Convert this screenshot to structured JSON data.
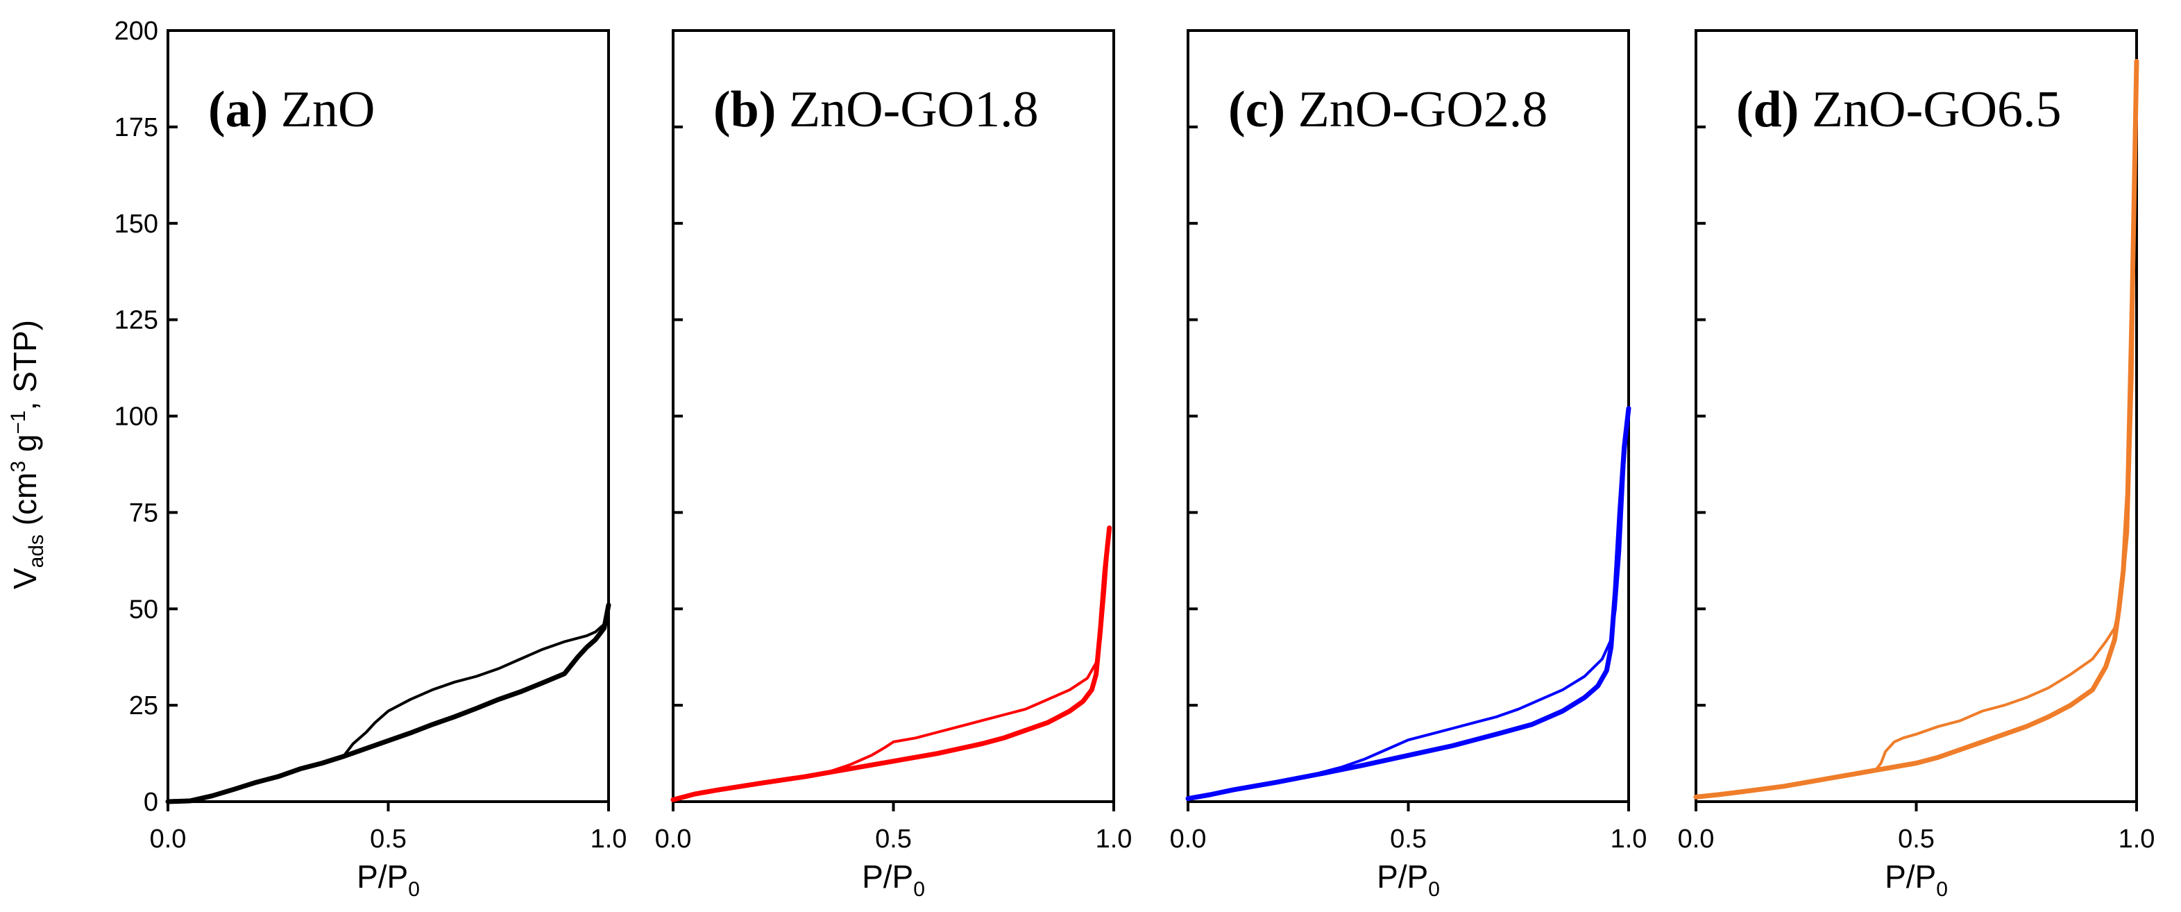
{
  "chart_data": {
    "type": "line",
    "title": "",
    "y_axis": {
      "label_main": "V",
      "label_sub": "ads",
      "label_rest": " (cm",
      "label_sup3": "3",
      "label_g": " g",
      "label_supm1": "−1",
      "label_end": ", STP)",
      "ylim": [
        0,
        200
      ],
      "ticks": [
        0,
        25,
        50,
        75,
        100,
        125,
        150,
        175,
        200
      ],
      "tick_labels": [
        "0",
        "25",
        "50",
        "75",
        "100",
        "125",
        "150",
        "175",
        "200"
      ]
    },
    "x_axis": {
      "label_main": "P/P",
      "label_sub": "0",
      "xlim": [
        0,
        1
      ],
      "ticks": [
        0,
        0.5,
        1.0
      ],
      "tick_labels": [
        "0.0",
        "0.5",
        "1.0"
      ]
    },
    "panels": [
      {
        "letter": "(a)",
        "name": " ZnO",
        "color": "#000000",
        "adsorption": [
          [
            0.0,
            0
          ],
          [
            0.05,
            0.2
          ],
          [
            0.1,
            1.5
          ],
          [
            0.15,
            3.2
          ],
          [
            0.2,
            5
          ],
          [
            0.25,
            6.5
          ],
          [
            0.3,
            8.5
          ],
          [
            0.35,
            10
          ],
          [
            0.4,
            11.8
          ],
          [
            0.45,
            13.8
          ],
          [
            0.5,
            15.8
          ],
          [
            0.55,
            17.8
          ],
          [
            0.6,
            20
          ],
          [
            0.65,
            22
          ],
          [
            0.7,
            24.2
          ],
          [
            0.75,
            26.5
          ],
          [
            0.8,
            28.5
          ],
          [
            0.85,
            30.8
          ],
          [
            0.9,
            33.2
          ],
          [
            0.93,
            37.5
          ],
          [
            0.95,
            40
          ],
          [
            0.97,
            42
          ],
          [
            0.99,
            45
          ],
          [
            1.0,
            51
          ]
        ],
        "desorption": [
          [
            1.0,
            51
          ],
          [
            0.99,
            46
          ],
          [
            0.97,
            44
          ],
          [
            0.95,
            43
          ],
          [
            0.9,
            41.5
          ],
          [
            0.85,
            39.5
          ],
          [
            0.8,
            37
          ],
          [
            0.75,
            34.5
          ],
          [
            0.7,
            32.5
          ],
          [
            0.65,
            31
          ],
          [
            0.6,
            29
          ],
          [
            0.55,
            26.5
          ],
          [
            0.5,
            23.5
          ],
          [
            0.47,
            20.5
          ],
          [
            0.45,
            18
          ],
          [
            0.42,
            15
          ],
          [
            0.4,
            12
          ]
        ]
      },
      {
        "letter": "(b)",
        "name": " ZnO-GO1.8",
        "color": "#ff0000",
        "adsorption": [
          [
            0.0,
            0.5
          ],
          [
            0.05,
            2
          ],
          [
            0.1,
            3
          ],
          [
            0.2,
            4.8
          ],
          [
            0.3,
            6.5
          ],
          [
            0.35,
            7.5
          ],
          [
            0.4,
            8.5
          ],
          [
            0.5,
            10.5
          ],
          [
            0.6,
            12.5
          ],
          [
            0.7,
            15
          ],
          [
            0.75,
            16.5
          ],
          [
            0.8,
            18.5
          ],
          [
            0.85,
            20.5
          ],
          [
            0.9,
            23.5
          ],
          [
            0.93,
            26
          ],
          [
            0.95,
            29
          ],
          [
            0.96,
            33
          ],
          [
            0.97,
            45
          ],
          [
            0.98,
            60
          ],
          [
            0.99,
            71
          ]
        ],
        "desorption": [
          [
            0.99,
            71
          ],
          [
            0.98,
            55
          ],
          [
            0.97,
            42
          ],
          [
            0.96,
            36
          ],
          [
            0.94,
            32
          ],
          [
            0.9,
            29
          ],
          [
            0.85,
            26.5
          ],
          [
            0.8,
            24
          ],
          [
            0.75,
            22.5
          ],
          [
            0.7,
            21
          ],
          [
            0.65,
            19.5
          ],
          [
            0.6,
            18
          ],
          [
            0.55,
            16.5
          ],
          [
            0.5,
            15.5
          ],
          [
            0.48,
            14
          ],
          [
            0.45,
            12
          ],
          [
            0.4,
            9.5
          ],
          [
            0.36,
            8
          ]
        ]
      },
      {
        "letter": "(c)",
        "name": " ZnO-GO2.8",
        "color": "#0000ff",
        "adsorption": [
          [
            0.0,
            0.8
          ],
          [
            0.05,
            1.8
          ],
          [
            0.1,
            3
          ],
          [
            0.2,
            5
          ],
          [
            0.3,
            7.2
          ],
          [
            0.4,
            9.5
          ],
          [
            0.5,
            12
          ],
          [
            0.6,
            14.5
          ],
          [
            0.7,
            17.5
          ],
          [
            0.78,
            20
          ],
          [
            0.85,
            23.5
          ],
          [
            0.9,
            27
          ],
          [
            0.93,
            30
          ],
          [
            0.95,
            34
          ],
          [
            0.96,
            40
          ],
          [
            0.97,
            55
          ],
          [
            0.98,
            75
          ],
          [
            0.99,
            92
          ],
          [
            1.0,
            102
          ]
        ],
        "desorption": [
          [
            1.0,
            102
          ],
          [
            0.99,
            88
          ],
          [
            0.98,
            65
          ],
          [
            0.97,
            50
          ],
          [
            0.96,
            42
          ],
          [
            0.94,
            37
          ],
          [
            0.9,
            32.5
          ],
          [
            0.85,
            29
          ],
          [
            0.8,
            26.5
          ],
          [
            0.75,
            24
          ],
          [
            0.7,
            22
          ],
          [
            0.65,
            20.5
          ],
          [
            0.6,
            19
          ],
          [
            0.55,
            17.5
          ],
          [
            0.5,
            16
          ],
          [
            0.45,
            13.5
          ],
          [
            0.4,
            11
          ],
          [
            0.35,
            9
          ],
          [
            0.3,
            7.5
          ]
        ]
      },
      {
        "letter": "(d)",
        "name": " ZnO-GO6.5",
        "color": "#ef7d2a",
        "adsorption": [
          [
            0.0,
            1.2
          ],
          [
            0.05,
            1.8
          ],
          [
            0.1,
            2.5
          ],
          [
            0.2,
            4
          ],
          [
            0.3,
            6
          ],
          [
            0.4,
            8
          ],
          [
            0.5,
            10
          ],
          [
            0.55,
            11.5
          ],
          [
            0.6,
            13.5
          ],
          [
            0.65,
            15.5
          ],
          [
            0.7,
            17.5
          ],
          [
            0.75,
            19.5
          ],
          [
            0.8,
            22
          ],
          [
            0.85,
            25
          ],
          [
            0.9,
            29
          ],
          [
            0.93,
            35
          ],
          [
            0.95,
            42
          ],
          [
            0.96,
            50
          ],
          [
            0.97,
            60
          ],
          [
            0.98,
            80
          ],
          [
            0.99,
            130
          ],
          [
            1.0,
            192
          ]
        ],
        "desorption": [
          [
            1.0,
            192
          ],
          [
            0.99,
            110
          ],
          [
            0.98,
            70
          ],
          [
            0.97,
            58
          ],
          [
            0.96,
            50
          ],
          [
            0.95,
            45
          ],
          [
            0.93,
            41.5
          ],
          [
            0.9,
            37
          ],
          [
            0.85,
            33
          ],
          [
            0.8,
            29.5
          ],
          [
            0.75,
            27
          ],
          [
            0.7,
            25
          ],
          [
            0.65,
            23.5
          ],
          [
            0.6,
            21
          ],
          [
            0.55,
            19.5
          ],
          [
            0.5,
            17.5
          ],
          [
            0.47,
            16.5
          ],
          [
            0.45,
            15.5
          ],
          [
            0.43,
            13
          ],
          [
            0.42,
            10
          ],
          [
            0.41,
            8.5
          ]
        ]
      }
    ]
  }
}
